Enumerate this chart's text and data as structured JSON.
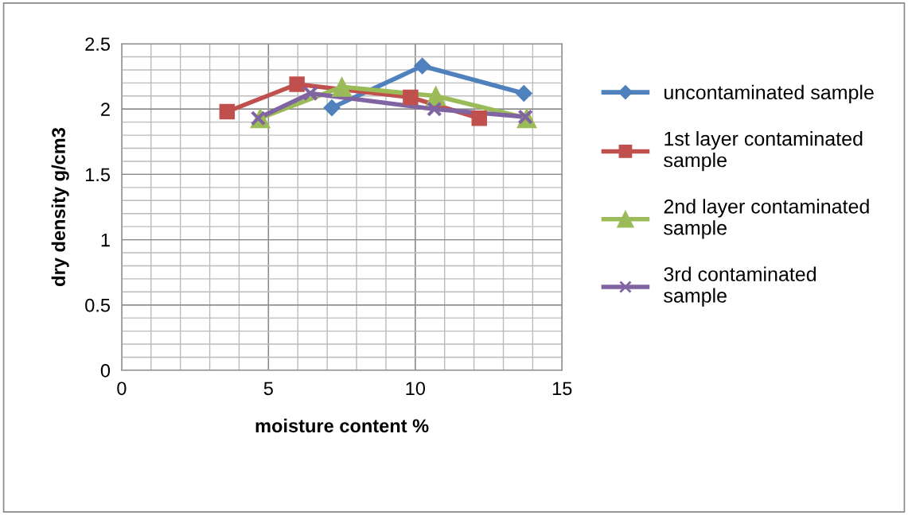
{
  "chart_data": {
    "type": "line",
    "xlabel": "moisture content %",
    "ylabel": "dry density g/cm3",
    "xlim": [
      0,
      15
    ],
    "xticks": [
      0,
      5,
      10,
      15
    ],
    "ylim": [
      0,
      2.5
    ],
    "yticks": [
      0,
      0.5,
      1,
      1.5,
      2,
      2.5
    ],
    "grid": true,
    "legend": "right",
    "line_style": "solid",
    "series": [
      {
        "name": "uncontaminated sample",
        "color": "#4f81bd",
        "marker": "diamond",
        "x": [
          7.16,
          10.24,
          13.7
        ],
        "values": [
          2.01,
          2.33,
          2.12
        ]
      },
      {
        "name": "1st layer contaminated\nsample",
        "color": "#c0504d",
        "marker": "square",
        "x": [
          3.59,
          5.97,
          9.84,
          12.18
        ],
        "values": [
          1.98,
          2.19,
          2.09,
          1.93
        ]
      },
      {
        "name": "2nd layer contaminated\nsample",
        "color": "#9bbb59",
        "marker": "triangle",
        "x": [
          4.72,
          7.5,
          10.7,
          13.8
        ],
        "values": [
          1.93,
          2.17,
          2.1,
          1.93
        ]
      },
      {
        "name": "3rd contaminated\nsample",
        "color": "#8064a2",
        "marker": "cross",
        "x": [
          4.65,
          6.43,
          10.65,
          13.75
        ],
        "values": [
          1.93,
          2.12,
          2.0,
          1.94
        ]
      }
    ]
  }
}
